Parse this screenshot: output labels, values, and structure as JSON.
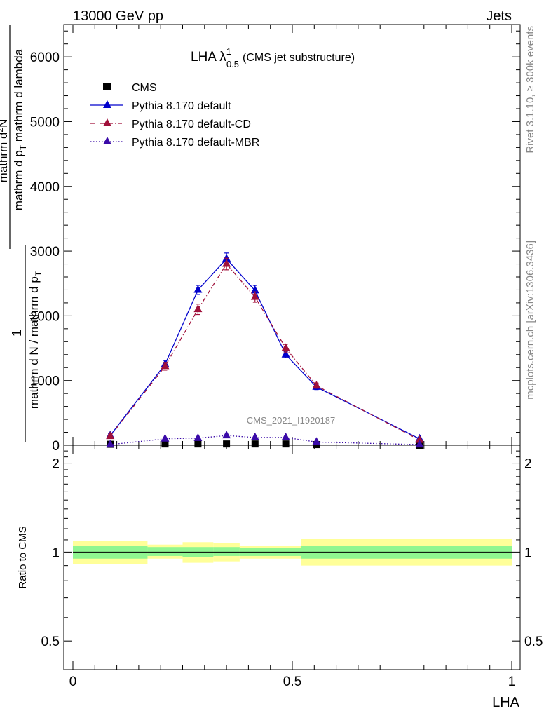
{
  "header": {
    "left": "13000 GeV pp",
    "right": "Jets"
  },
  "side_labels": {
    "rivet": "Rivet 3.1.10, ≥ 300k events",
    "mcplots": "mcplots.cern.ch [arXiv:1306.3436]"
  },
  "watermark": "CMS_2021_I1920187",
  "chart_data": [
    {
      "type": "line",
      "title_main": "LHA λ",
      "title_sup": "1",
      "title_sub": "0.5",
      "title_suffix": "(CMS jet substructure)",
      "ylabel_parts": {
        "one": "1",
        "den": "mathrm d N / mathrm d p",
        "den_sub": "T",
        "num2": "mathrm d",
        "num2_sup": "2",
        "num2_rest": "N",
        "den2": "mathrm d p",
        "den2_sub": "T",
        "den2_rest": " mathrm d lambda"
      },
      "xlim": [
        0,
        1
      ],
      "ylim": [
        0,
        6500
      ],
      "yticks": [
        0,
        1000,
        2000,
        3000,
        4000,
        5000,
        6000
      ],
      "ytick_labels": [
        "0",
        "1000",
        "2000",
        "3000",
        "4000",
        "5000",
        "6000"
      ],
      "legend_position": "top-left",
      "series": [
        {
          "name": "CMS",
          "color": "#000000",
          "marker": "square",
          "line": "none",
          "x": [
            0.085,
            0.21,
            0.285,
            0.35,
            0.415,
            0.485,
            0.555,
            0.79
          ],
          "y": [
            15,
            20,
            20,
            20,
            20,
            20,
            10,
            0
          ]
        },
        {
          "name": "Pythia 8.170 default",
          "color": "#0000cc",
          "marker": "triangle",
          "line": "solid",
          "x": [
            0.085,
            0.21,
            0.285,
            0.35,
            0.415,
            0.485,
            0.555,
            0.79
          ],
          "y": [
            150,
            1250,
            2400,
            2880,
            2390,
            1400,
            900,
            100
          ],
          "err": [
            30,
            60,
            70,
            90,
            80,
            50,
            40,
            15
          ]
        },
        {
          "name": "Pythia 8.170 default-CD",
          "color": "#a0103a",
          "marker": "triangle",
          "line": "dashdot",
          "x": [
            0.085,
            0.21,
            0.285,
            0.35,
            0.415,
            0.485,
            0.555,
            0.79
          ],
          "y": [
            140,
            1220,
            2100,
            2800,
            2290,
            1500,
            920,
            80
          ],
          "err": [
            30,
            60,
            80,
            90,
            80,
            60,
            40,
            15
          ]
        },
        {
          "name": "Pythia 8.170 default-MBR",
          "color": "#3a0aa8",
          "marker": "triangle",
          "line": "dotted",
          "x": [
            0.085,
            0.21,
            0.285,
            0.35,
            0.415,
            0.485,
            0.555,
            0.79
          ],
          "y": [
            10,
            100,
            110,
            150,
            120,
            120,
            50,
            10
          ]
        }
      ]
    },
    {
      "type": "area",
      "ylabel": "Ratio to CMS",
      "xlabel": "LHA",
      "xlim": [
        0,
        1
      ],
      "ylim": [
        0.4,
        2.3
      ],
      "log_y": true,
      "yticks": [
        0.5,
        1,
        2
      ],
      "ytick_labels": [
        "0.5",
        "1",
        "2"
      ],
      "xticks": [
        0,
        0.5,
        1
      ],
      "xtick_labels": [
        "0",
        "0.5",
        "1"
      ],
      "bins": [
        {
          "x0": 0.0,
          "x1": 0.17,
          "inner": [
            0.95,
            1.05
          ],
          "outer": [
            0.91,
            1.09
          ]
        },
        {
          "x0": 0.17,
          "x1": 0.25,
          "inner": [
            0.97,
            1.04
          ],
          "outer": [
            0.95,
            1.06
          ]
        },
        {
          "x0": 0.25,
          "x1": 0.32,
          "inner": [
            0.96,
            1.04
          ],
          "outer": [
            0.92,
            1.08
          ]
        },
        {
          "x0": 0.32,
          "x1": 0.38,
          "inner": [
            0.97,
            1.04
          ],
          "outer": [
            0.93,
            1.07
          ]
        },
        {
          "x0": 0.38,
          "x1": 0.52,
          "inner": [
            0.97,
            1.03
          ],
          "outer": [
            0.95,
            1.05
          ]
        },
        {
          "x0": 0.52,
          "x1": 0.59,
          "inner": [
            0.95,
            1.05
          ],
          "outer": [
            0.9,
            1.11
          ]
        },
        {
          "x0": 0.59,
          "x1": 1.0,
          "inner": [
            0.95,
            1.05
          ],
          "outer": [
            0.9,
            1.11
          ]
        }
      ],
      "reference": 1,
      "band_colors": {
        "inner": "#90f690",
        "outer": "#ffff99"
      }
    }
  ]
}
